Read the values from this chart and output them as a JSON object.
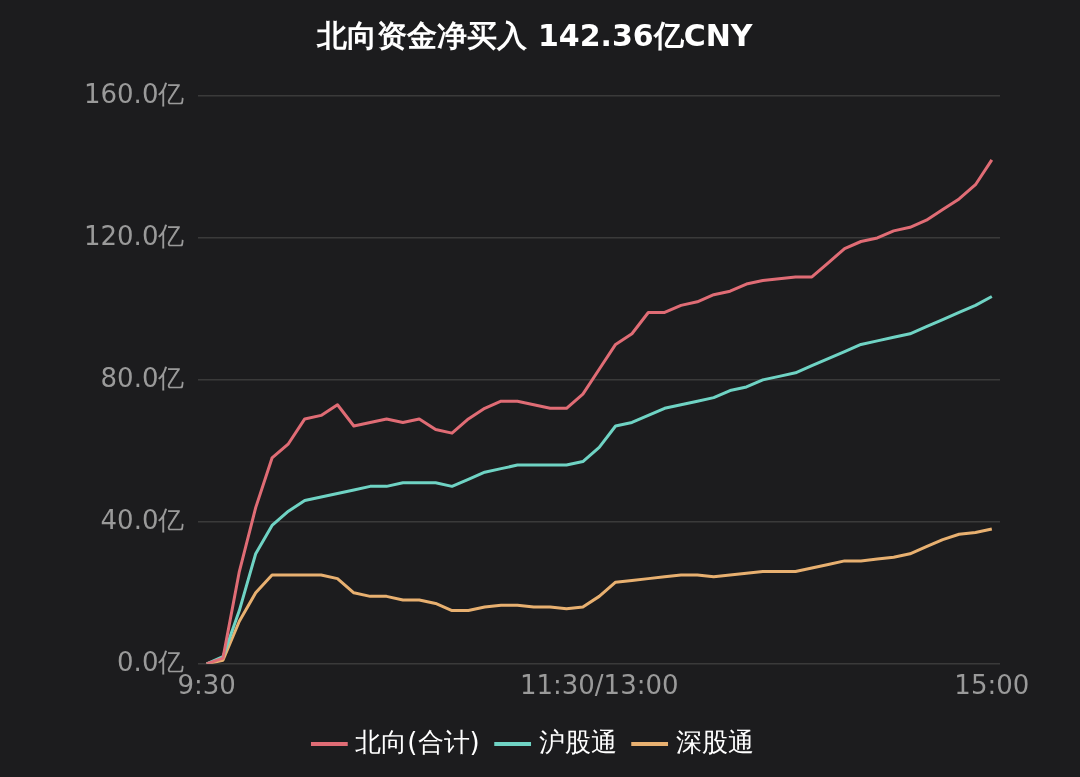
{
  "chart_data": {
    "type": "line",
    "title": "北向资金净买入 142.36亿CNY",
    "categories": [
      "9:30",
      null,
      null,
      null,
      null,
      null,
      null,
      null,
      null,
      null,
      null,
      null,
      null,
      null,
      null,
      null,
      null,
      null,
      null,
      null,
      null,
      null,
      null,
      null,
      "11:30/13:00",
      null,
      null,
      null,
      null,
      null,
      null,
      null,
      null,
      null,
      null,
      null,
      null,
      null,
      null,
      null,
      null,
      null,
      null,
      null,
      null,
      null,
      null,
      null,
      "15:00"
    ],
    "ylim": [
      0,
      160
    ],
    "yticks": [
      {
        "value": 0,
        "label": "0.0亿"
      },
      {
        "value": 40,
        "label": "40.0亿"
      },
      {
        "value": 80,
        "label": "80.0亿"
      },
      {
        "value": 120,
        "label": "120.0亿"
      },
      {
        "value": 160,
        "label": "160.0亿"
      }
    ],
    "grid": "y",
    "legend": "bottom",
    "marker": "none",
    "line_style": "solid",
    "series": [
      {
        "name": "北向(合计)",
        "color": "#e06c75",
        "values": [
          0,
          1.6,
          26,
          44,
          58,
          62,
          69,
          70,
          73,
          67,
          68,
          69,
          68,
          69,
          66,
          65,
          69,
          72,
          74,
          74,
          73,
          72,
          72,
          76,
          83,
          90,
          93,
          99,
          99,
          101,
          102,
          104,
          105,
          107,
          108,
          108.5,
          109,
          109,
          113,
          117,
          119,
          120,
          122,
          123,
          125,
          128,
          131,
          135,
          142
        ]
      },
      {
        "name": "沪股通",
        "color": "#6fd3c4",
        "values": [
          0,
          2,
          15,
          31,
          39,
          43,
          46,
          47,
          48,
          49,
          50,
          50,
          51,
          51,
          51,
          50,
          52,
          54,
          55,
          56,
          56,
          56,
          56,
          57,
          61,
          67,
          68,
          70,
          72,
          73,
          74,
          75,
          77,
          78,
          80,
          81,
          82,
          84,
          86,
          88,
          90,
          91,
          92,
          93,
          95,
          97,
          99,
          101,
          103.5
        ]
      },
      {
        "name": "深股通",
        "color": "#e8b070",
        "values": [
          0,
          1,
          12,
          20,
          25,
          25,
          25,
          25,
          24,
          20,
          19,
          19,
          18,
          18,
          17,
          15,
          15,
          16,
          16.5,
          16.5,
          16,
          16,
          15.5,
          16,
          19,
          23,
          23.5,
          24,
          24.5,
          25,
          25,
          24.5,
          25,
          25.5,
          26,
          26,
          26,
          27,
          28,
          29,
          29,
          29.5,
          30,
          31,
          33,
          35,
          36.5,
          37,
          38
        ]
      }
    ]
  }
}
